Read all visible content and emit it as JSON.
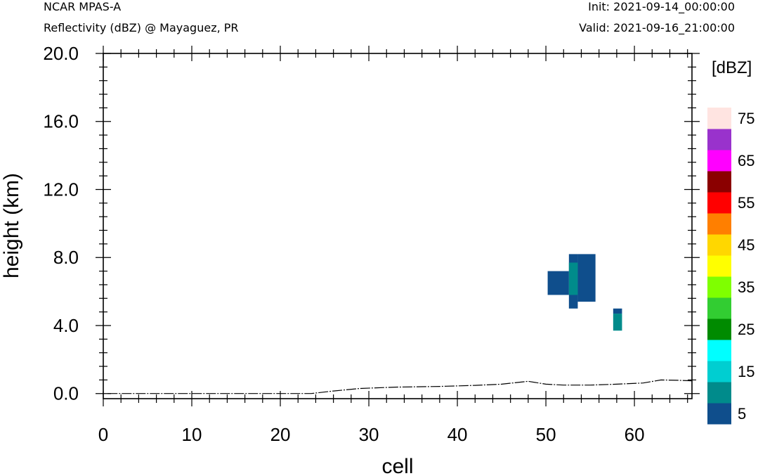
{
  "header": {
    "model": "NCAR MPAS-A",
    "product": "Reflectivity (dBZ) @ Mayaguez, PR",
    "init": "Init: 2021-09-14_00:00:00",
    "valid": "Valid: 2021-09-16_21:00:00"
  },
  "chart_data": {
    "type": "heatmap",
    "xlabel": "cell",
    "ylabel": "height (km)",
    "xlim": [
      0,
      66.5
    ],
    "ylim": [
      -0.3,
      20.0
    ],
    "x_ticks": [
      "0",
      "10",
      "20",
      "30",
      "40",
      "50",
      "60"
    ],
    "y_ticks": [
      "0.0",
      "4.0",
      "8.0",
      "12.0",
      "16.0",
      "20.0"
    ],
    "colorbar": {
      "unit": "[dBZ]",
      "labels": [
        "5",
        "15",
        "25",
        "35",
        "45",
        "55",
        "65",
        "75"
      ],
      "colors": [
        "#0f4e8c",
        "#008b8b",
        "#00ced1",
        "#00ffff",
        "#008b00",
        "#32cd32",
        "#7fff00",
        "#ffff00",
        "#ffd700",
        "#ff7f00",
        "#ff0000",
        "#8b0000",
        "#ff00ff",
        "#9932cc",
        "#ffe4e1"
      ]
    },
    "cells": [
      {
        "x0": 50.2,
        "x1": 52.6,
        "y0": 5.8,
        "y1": 7.2,
        "dbz": 5
      },
      {
        "x0": 52.6,
        "x1": 53.6,
        "y0": 5.0,
        "y1": 8.2,
        "dbz": 5
      },
      {
        "x0": 53.6,
        "x1": 55.6,
        "y0": 5.4,
        "y1": 8.2,
        "dbz": 5
      },
      {
        "x0": 52.6,
        "x1": 53.6,
        "y0": 5.8,
        "y1": 7.7,
        "dbz": 10
      },
      {
        "x0": 57.6,
        "x1": 58.6,
        "y0": 4.7,
        "y1": 5.0,
        "dbz": 5
      },
      {
        "x0": 57.6,
        "x1": 58.6,
        "y0": 3.7,
        "y1": 4.7,
        "dbz": 10
      }
    ],
    "terrain": {
      "x": [
        0.5,
        23.5,
        26,
        29,
        33,
        38,
        42,
        45,
        48,
        50,
        52,
        55,
        58,
        61,
        63,
        65,
        66.5
      ],
      "y": [
        0.0,
        0.0,
        0.15,
        0.3,
        0.38,
        0.42,
        0.48,
        0.55,
        0.72,
        0.55,
        0.5,
        0.5,
        0.55,
        0.62,
        0.8,
        0.78,
        0.75
      ]
    }
  }
}
